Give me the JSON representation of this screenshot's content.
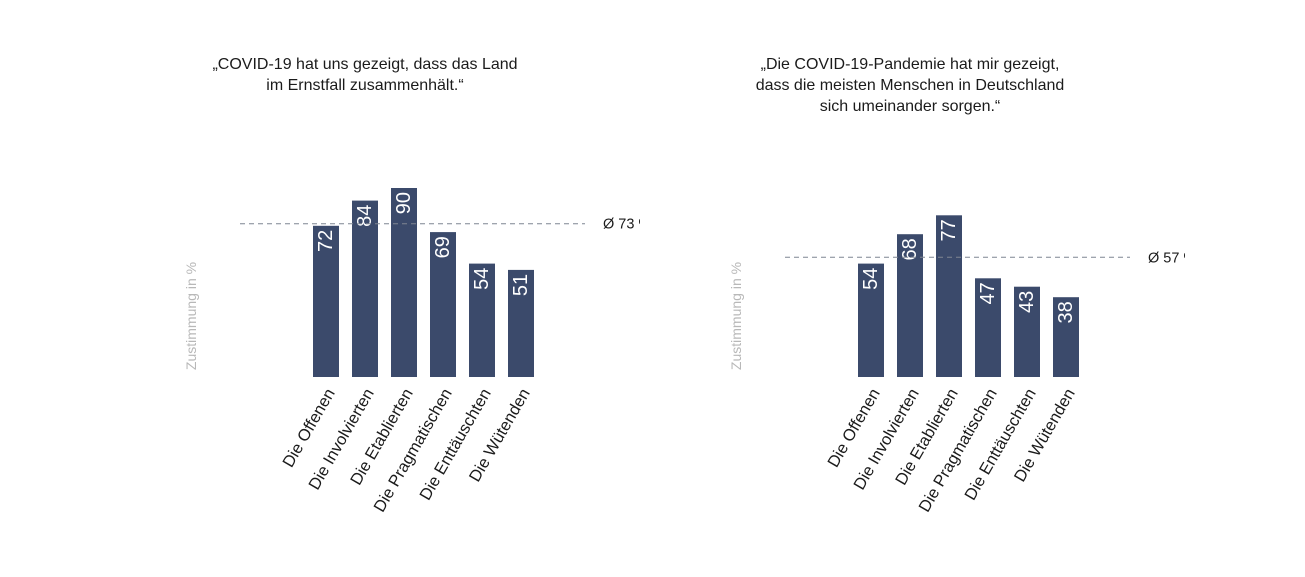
{
  "charts": [
    {
      "title": "„COVID-19 hat uns gezeigt, dass das Land\nim Ernstfall zusammenhält.“"
    },
    {
      "title": "„Die COVID-19-Pandemie hat mir gezeigt,\ndass die meisten Menschen in Deutschland\nsich umeinander sorgen.“"
    }
  ],
  "chart_data": [
    {
      "type": "bar",
      "title": "„COVID-19 hat uns gezeigt, dass das Land im Ernstfall zusammenhält.“",
      "ylabel": "Zustimmung in %",
      "categories": [
        "Die Offenen",
        "Die Involvierten",
        "Die Etablierten",
        "Die Pragmatischen",
        "Die Enttäuschten",
        "Die Wütenden"
      ],
      "values": [
        72,
        84,
        90,
        69,
        54,
        51
      ],
      "average": 73,
      "average_label": "Ø 73 %",
      "data_labels": true,
      "grid": false,
      "bar_color": "#3b4a6b"
    },
    {
      "type": "bar",
      "title": "„Die COVID-19-Pandemie hat mir gezeigt, dass die meisten Menschen in Deutschland sich umeinander sorgen.“",
      "ylabel": "Zustimmung in %",
      "categories": [
        "Die Offenen",
        "Die Involvierten",
        "Die Etablierten",
        "Die Pragmatischen",
        "Die Enttäuschten",
        "Die Wütenden"
      ],
      "values": [
        54,
        68,
        77,
        47,
        43,
        38
      ],
      "average": 57,
      "average_label": "Ø 57 %",
      "data_labels": true,
      "grid": false,
      "bar_color": "#3b4a6b"
    }
  ]
}
